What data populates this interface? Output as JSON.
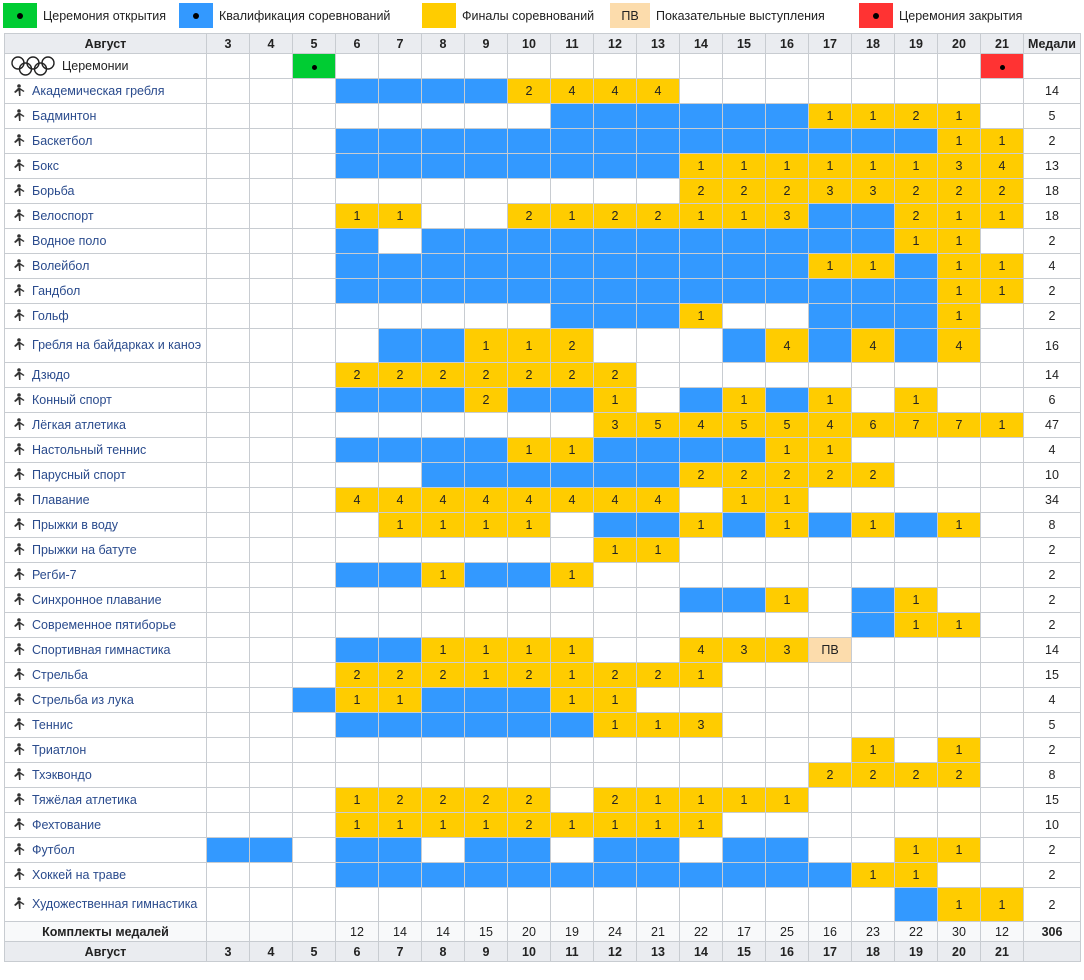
{
  "colors": {
    "qualification": "#3399ff",
    "finals": "#ffcc00",
    "exhibition": "#fcdcac",
    "opening": "#00cc33",
    "closing": "#ff3333"
  },
  "legend": [
    {
      "key": "opening",
      "label": "Церемония открытия",
      "swatch_text": ""
    },
    {
      "key": "qual",
      "label": "Квалификация соревнований",
      "swatch_text": ""
    },
    {
      "key": "finals",
      "label": "Финалы соревнований",
      "swatch_text": ""
    },
    {
      "key": "exhib",
      "label": "Показательные выступления",
      "swatch_text": "ПВ"
    },
    {
      "key": "closing",
      "label": "Церемония закрытия",
      "swatch_text": ""
    }
  ],
  "header": {
    "month": "Август",
    "medals": "Медали",
    "days": [
      "3",
      "4",
      "5",
      "6",
      "7",
      "8",
      "9",
      "10",
      "11",
      "12",
      "13",
      "14",
      "15",
      "16",
      "17",
      "18",
      "19",
      "20",
      "21"
    ]
  },
  "rows": [
    {
      "name": "Церемонии",
      "icon": "olympic-rings-icon",
      "cells": [
        "",
        "",
        "O",
        "",
        "",
        "",
        "",
        "",
        "",
        "",
        "",
        "",
        "",
        "",
        "",
        "",
        "",
        "",
        "C"
      ],
      "medals": ""
    },
    {
      "name": "Академическая гребля",
      "icon": "rowing-icon",
      "cells": [
        "",
        "",
        "",
        "Q",
        "Q",
        "Q",
        "Q",
        "2",
        "4",
        "4",
        "4",
        "",
        "",
        "",
        "",
        "",
        "",
        "",
        ""
      ],
      "medals": "14"
    },
    {
      "name": "Бадминтон",
      "icon": "badminton-icon",
      "cells": [
        "",
        "",
        "",
        "",
        "",
        "",
        "",
        "",
        "Q",
        "Q",
        "Q",
        "Q",
        "Q",
        "Q",
        "1",
        "1",
        "2",
        "1",
        ""
      ],
      "medals": "5"
    },
    {
      "name": "Баскетбол",
      "icon": "basketball-icon",
      "cells": [
        "",
        "",
        "",
        "Q",
        "Q",
        "Q",
        "Q",
        "Q",
        "Q",
        "Q",
        "Q",
        "Q",
        "Q",
        "Q",
        "Q",
        "Q",
        "Q",
        "1",
        "1"
      ],
      "medals": "2"
    },
    {
      "name": "Бокс",
      "icon": "boxing-icon",
      "cells": [
        "",
        "",
        "",
        "Q",
        "Q",
        "Q",
        "Q",
        "Q",
        "Q",
        "Q",
        "Q",
        "1",
        "1",
        "1",
        "1",
        "1",
        "1",
        "3",
        "4"
      ],
      "medals": "13"
    },
    {
      "name": "Борьба",
      "icon": "wrestling-icon",
      "cells": [
        "",
        "",
        "",
        "",
        "",
        "",
        "",
        "",
        "",
        "",
        "",
        "2",
        "2",
        "2",
        "3",
        "3",
        "2",
        "2",
        "2"
      ],
      "medals": "18"
    },
    {
      "name": "Велоспорт",
      "icon": "cycling-icon",
      "cells": [
        "",
        "",
        "",
        "1",
        "1",
        "",
        "",
        "2",
        "1",
        "2",
        "2",
        "1",
        "1",
        "3",
        "Q",
        "Q",
        "2",
        "1",
        "1"
      ],
      "medals": "18"
    },
    {
      "name": "Водное поло",
      "icon": "water-polo-icon",
      "cells": [
        "",
        "",
        "",
        "Q",
        "",
        "Q",
        "Q",
        "Q",
        "Q",
        "Q",
        "Q",
        "Q",
        "Q",
        "Q",
        "Q",
        "Q",
        "1",
        "1",
        ""
      ],
      "medals": "2"
    },
    {
      "name": "Волейбол",
      "icon": "volleyball-icon",
      "cells": [
        "",
        "",
        "",
        "Q",
        "Q",
        "Q",
        "Q",
        "Q",
        "Q",
        "Q",
        "Q",
        "Q",
        "Q",
        "Q",
        "1",
        "1",
        "Q",
        "1",
        "1"
      ],
      "medals": "4"
    },
    {
      "name": "Гандбол",
      "icon": "handball-icon",
      "cells": [
        "",
        "",
        "",
        "Q",
        "Q",
        "Q",
        "Q",
        "Q",
        "Q",
        "Q",
        "Q",
        "Q",
        "Q",
        "Q",
        "Q",
        "Q",
        "Q",
        "1",
        "1"
      ],
      "medals": "2"
    },
    {
      "name": "Гольф",
      "icon": "golf-icon",
      "cells": [
        "",
        "",
        "",
        "",
        "",
        "",
        "",
        "",
        "Q",
        "Q",
        "Q",
        "1",
        "",
        "",
        "Q",
        "Q",
        "Q",
        "1",
        ""
      ],
      "medals": "2"
    },
    {
      "name": "Гребля на байдарках и каноэ",
      "icon": "canoe-icon",
      "wrap": true,
      "cells": [
        "",
        "",
        "",
        "",
        "Q",
        "Q",
        "1",
        "1",
        "2",
        "",
        "",
        "",
        "Q",
        "4",
        "Q",
        "4",
        "Q",
        "4",
        ""
      ],
      "medals": "16"
    },
    {
      "name": "Дзюдо",
      "icon": "judo-icon",
      "cells": [
        "",
        "",
        "",
        "2",
        "2",
        "2",
        "2",
        "2",
        "2",
        "2",
        "",
        "",
        "",
        "",
        "",
        "",
        "",
        "",
        ""
      ],
      "medals": "14"
    },
    {
      "name": "Конный спорт",
      "icon": "equestrian-icon",
      "cells": [
        "",
        "",
        "",
        "Q",
        "Q",
        "Q",
        "2",
        "Q",
        "Q",
        "1",
        "",
        "Q",
        "1",
        "Q",
        "1",
        "",
        "1",
        "",
        ""
      ],
      "medals": "6"
    },
    {
      "name": "Лёгкая атлетика",
      "icon": "athletics-icon",
      "cells": [
        "",
        "",
        "",
        "",
        "",
        "",
        "",
        "",
        "",
        "3",
        "5",
        "4",
        "5",
        "5",
        "4",
        "6",
        "7",
        "7",
        "1"
      ],
      "medals": "47"
    },
    {
      "name": "Настольный теннис",
      "icon": "table-tennis-icon",
      "cells": [
        "",
        "",
        "",
        "Q",
        "Q",
        "Q",
        "Q",
        "1",
        "1",
        "Q",
        "Q",
        "Q",
        "Q",
        "1",
        "1",
        "",
        "",
        "",
        ""
      ],
      "medals": "4"
    },
    {
      "name": "Парусный спорт",
      "icon": "sailing-icon",
      "cells": [
        "",
        "",
        "",
        "",
        "",
        "Q",
        "Q",
        "Q",
        "Q",
        "Q",
        "Q",
        "2",
        "2",
        "2",
        "2",
        "2",
        "",
        "",
        ""
      ],
      "medals": "10"
    },
    {
      "name": "Плавание",
      "icon": "swimming-icon",
      "cells": [
        "",
        "",
        "",
        "4",
        "4",
        "4",
        "4",
        "4",
        "4",
        "4",
        "4",
        "",
        "1",
        "1",
        "",
        "",
        "",
        "",
        ""
      ],
      "medals": "34"
    },
    {
      "name": "Прыжки в воду",
      "icon": "diving-icon",
      "cells": [
        "",
        "",
        "",
        "",
        "1",
        "1",
        "1",
        "1",
        "",
        "Q",
        "Q",
        "1",
        "Q",
        "1",
        "Q",
        "1",
        "Q",
        "1",
        ""
      ],
      "medals": "8"
    },
    {
      "name": "Прыжки на батуте",
      "icon": "trampoline-icon",
      "cells": [
        "",
        "",
        "",
        "",
        "",
        "",
        "",
        "",
        "",
        "1",
        "1",
        "",
        "",
        "",
        "",
        "",
        "",
        "",
        ""
      ],
      "medals": "2"
    },
    {
      "name": "Регби-7",
      "icon": "rugby-icon",
      "cells": [
        "",
        "",
        "",
        "Q",
        "Q",
        "1",
        "Q",
        "Q",
        "1",
        "",
        "",
        "",
        "",
        "",
        "",
        "",
        "",
        "",
        ""
      ],
      "medals": "2"
    },
    {
      "name": "Синхронное плавание",
      "icon": "synchronized-swimming-icon",
      "cells": [
        "",
        "",
        "",
        "",
        "",
        "",
        "",
        "",
        "",
        "",
        "",
        "Q",
        "Q",
        "1",
        "",
        "Q",
        "1",
        "",
        ""
      ],
      "medals": "2"
    },
    {
      "name": "Современное пятиборье",
      "icon": "modern-pentathlon-icon",
      "cells": [
        "",
        "",
        "",
        "",
        "",
        "",
        "",
        "",
        "",
        "",
        "",
        "",
        "",
        "",
        "",
        "Q",
        "1",
        "1",
        ""
      ],
      "medals": "2"
    },
    {
      "name": "Спортивная гимнастика",
      "icon": "gymnastics-icon",
      "cells": [
        "",
        "",
        "",
        "Q",
        "Q",
        "1",
        "1",
        "1",
        "1",
        "",
        "",
        "4",
        "3",
        "3",
        "ПВ",
        "",
        "",
        "",
        ""
      ],
      "medals": "14"
    },
    {
      "name": "Стрельба",
      "icon": "shooting-icon",
      "cells": [
        "",
        "",
        "",
        "2",
        "2",
        "2",
        "1",
        "2",
        "1",
        "2",
        "2",
        "1",
        "",
        "",
        "",
        "",
        "",
        "",
        ""
      ],
      "medals": "15"
    },
    {
      "name": "Стрельба из лука",
      "icon": "archery-icon",
      "cells": [
        "",
        "",
        "Q",
        "1",
        "1",
        "Q",
        "Q",
        "Q",
        "1",
        "1",
        "",
        "",
        "",
        "",
        "",
        "",
        "",
        "",
        ""
      ],
      "medals": "4"
    },
    {
      "name": "Теннис",
      "icon": "tennis-icon",
      "cells": [
        "",
        "",
        "",
        "Q",
        "Q",
        "Q",
        "Q",
        "Q",
        "Q",
        "1",
        "1",
        "3",
        "",
        "",
        "",
        "",
        "",
        "",
        ""
      ],
      "medals": "5"
    },
    {
      "name": "Триатлон",
      "icon": "triathlon-icon",
      "cells": [
        "",
        "",
        "",
        "",
        "",
        "",
        "",
        "",
        "",
        "",
        "",
        "",
        "",
        "",
        "",
        "1",
        "",
        "1",
        ""
      ],
      "medals": "2"
    },
    {
      "name": "Тхэквондо",
      "icon": "taekwondo-icon",
      "cells": [
        "",
        "",
        "",
        "",
        "",
        "",
        "",
        "",
        "",
        "",
        "",
        "",
        "",
        "",
        "2",
        "2",
        "2",
        "2",
        ""
      ],
      "medals": "8"
    },
    {
      "name": "Тяжёлая атлетика",
      "icon": "weightlifting-icon",
      "cells": [
        "",
        "",
        "",
        "1",
        "2",
        "2",
        "2",
        "2",
        "",
        "2",
        "1",
        "1",
        "1",
        "1",
        "",
        "",
        "",
        "",
        ""
      ],
      "medals": "15"
    },
    {
      "name": "Фехтование",
      "icon": "fencing-icon",
      "cells": [
        "",
        "",
        "",
        "1",
        "1",
        "1",
        "1",
        "2",
        "1",
        "1",
        "1",
        "1",
        "",
        "",
        "",
        "",
        "",
        "",
        ""
      ],
      "medals": "10"
    },
    {
      "name": "Футбол",
      "icon": "football-icon",
      "cells": [
        "Q",
        "Q",
        "",
        "Q",
        "Q",
        "",
        "Q",
        "Q",
        "",
        "Q",
        "Q",
        "",
        "Q",
        "Q",
        "",
        "",
        "1",
        "1",
        ""
      ],
      "medals": "2"
    },
    {
      "name": "Хоккей на траве",
      "icon": "field-hockey-icon",
      "cells": [
        "",
        "",
        "",
        "Q",
        "Q",
        "Q",
        "Q",
        "Q",
        "Q",
        "Q",
        "Q",
        "Q",
        "Q",
        "Q",
        "Q",
        "1",
        "1",
        "",
        ""
      ],
      "medals": "2"
    },
    {
      "name": "Художественная гимнастика",
      "icon": "rhythmic-gymnastics-icon",
      "wrap": true,
      "cells": [
        "",
        "",
        "",
        "",
        "",
        "",
        "",
        "",
        "",
        "",
        "",
        "",
        "",
        "",
        "",
        "",
        "Q",
        "1",
        "1"
      ],
      "medals": "2"
    }
  ],
  "totals": {
    "label": "Комплекты медалей",
    "values": [
      "",
      "",
      "",
      "12",
      "14",
      "14",
      "15",
      "20",
      "19",
      "24",
      "21",
      "22",
      "17",
      "25",
      "16",
      "23",
      "22",
      "30",
      "12"
    ],
    "grand": "306"
  }
}
